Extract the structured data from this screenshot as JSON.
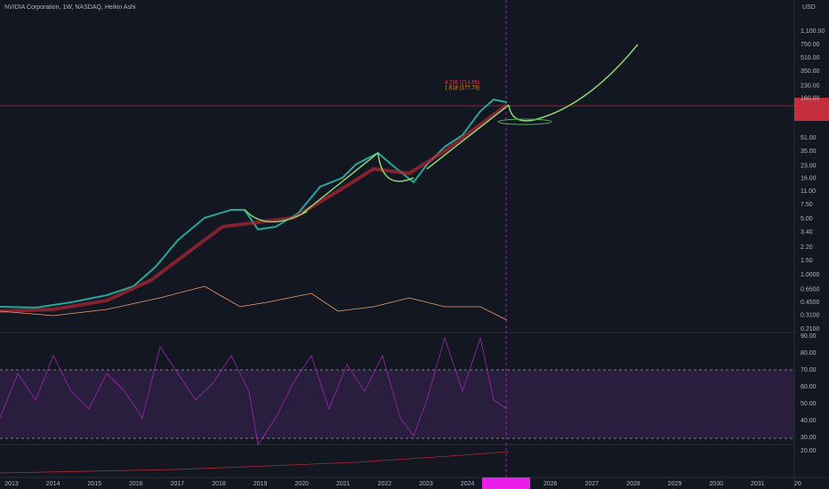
{
  "header": {
    "title": "NVIDIA Corporation, 1W, NASDAQ, Heikin Ashi",
    "currency": "USD"
  },
  "price_axis": [
    "1,100.00",
    "750.00",
    "510.00",
    "350.00",
    "230.00",
    "160.00",
    "51.00",
    "35.00",
    "23.00",
    "16.00",
    "11.00",
    "7.50",
    "5.00",
    "3.40",
    "2.20",
    "1.50",
    "1.0000",
    "0.6500",
    "0.4500",
    "0.3100",
    "0.2100"
  ],
  "rsi_axis": [
    "90.00",
    "80.00",
    "70.00",
    "60.00",
    "50.00",
    "40.00",
    "30.00"
  ],
  "lower_axis": [
    "20.00"
  ],
  "time_axis": [
    "2013",
    "2014",
    "2015",
    "2016",
    "2017",
    "2018",
    "2019",
    "2020",
    "2021",
    "2022",
    "2023",
    "2024",
    "2026",
    "2027",
    "2028",
    "2029",
    "2030",
    "2031",
    "20"
  ],
  "fib_labels": [
    "4.236 (214.65)",
    "1.618 (177.73)"
  ]
}
